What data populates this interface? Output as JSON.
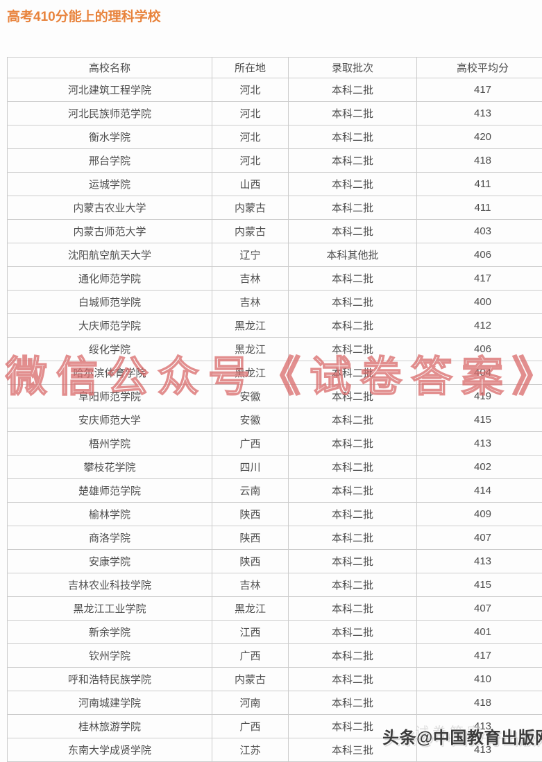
{
  "page": {
    "title": "高考410分能上的理科学校"
  },
  "colors": {
    "title": "#e8833c",
    "table_border": "#cccccc",
    "table_text": "#4d4d4d",
    "watermark_center": "#d96a6a",
    "watermark_bottom": "#3c3c3c"
  },
  "watermarks": {
    "center": "微信公众号《试卷答案》",
    "ghost": "试卷答案",
    "bottom_right": "头条@中国教育出版网"
  },
  "table": {
    "headers": [
      "高校名称",
      "所在地",
      "录取批次",
      "高校平均分"
    ],
    "rows": [
      [
        "河北建筑工程学院",
        "河北",
        "本科二批",
        "417"
      ],
      [
        "河北民族师范学院",
        "河北",
        "本科二批",
        "413"
      ],
      [
        "衡水学院",
        "河北",
        "本科二批",
        "420"
      ],
      [
        "邢台学院",
        "河北",
        "本科二批",
        "418"
      ],
      [
        "运城学院",
        "山西",
        "本科二批",
        "411"
      ],
      [
        "内蒙古农业大学",
        "内蒙古",
        "本科二批",
        "411"
      ],
      [
        "内蒙古师范大学",
        "内蒙古",
        "本科二批",
        "403"
      ],
      [
        "沈阳航空航天大学",
        "辽宁",
        "本科其他批",
        "406"
      ],
      [
        "通化师范学院",
        "吉林",
        "本科二批",
        "417"
      ],
      [
        "白城师范学院",
        "吉林",
        "本科二批",
        "400"
      ],
      [
        "大庆师范学院",
        "黑龙江",
        "本科二批",
        "412"
      ],
      [
        "绥化学院",
        "黑龙江",
        "本科二批",
        "406"
      ],
      [
        "哈尔滨体育学院",
        "黑龙江",
        "本科二批",
        "404"
      ],
      [
        "阜阳师范学院",
        "安徽",
        "本科二批",
        "419"
      ],
      [
        "安庆师范大学",
        "安徽",
        "本科二批",
        "415"
      ],
      [
        "梧州学院",
        "广西",
        "本科二批",
        "413"
      ],
      [
        "攀枝花学院",
        "四川",
        "本科二批",
        "402"
      ],
      [
        "楚雄师范学院",
        "云南",
        "本科二批",
        "414"
      ],
      [
        "榆林学院",
        "陕西",
        "本科二批",
        "409"
      ],
      [
        "商洛学院",
        "陕西",
        "本科二批",
        "407"
      ],
      [
        "安康学院",
        "陕西",
        "本科二批",
        "413"
      ],
      [
        "吉林农业科技学院",
        "吉林",
        "本科二批",
        "415"
      ],
      [
        "黑龙江工业学院",
        "黑龙江",
        "本科二批",
        "407"
      ],
      [
        "新余学院",
        "江西",
        "本科二批",
        "401"
      ],
      [
        "钦州学院",
        "广西",
        "本科二批",
        "417"
      ],
      [
        "呼和浩特民族学院",
        "内蒙古",
        "本科二批",
        "410"
      ],
      [
        "河南城建学院",
        "河南",
        "本科二批",
        "418"
      ],
      [
        "桂林旅游学院",
        "广西",
        "本科二批",
        "413"
      ],
      [
        "东南大学成贤学院",
        "江苏",
        "本科三批",
        "413"
      ]
    ]
  }
}
